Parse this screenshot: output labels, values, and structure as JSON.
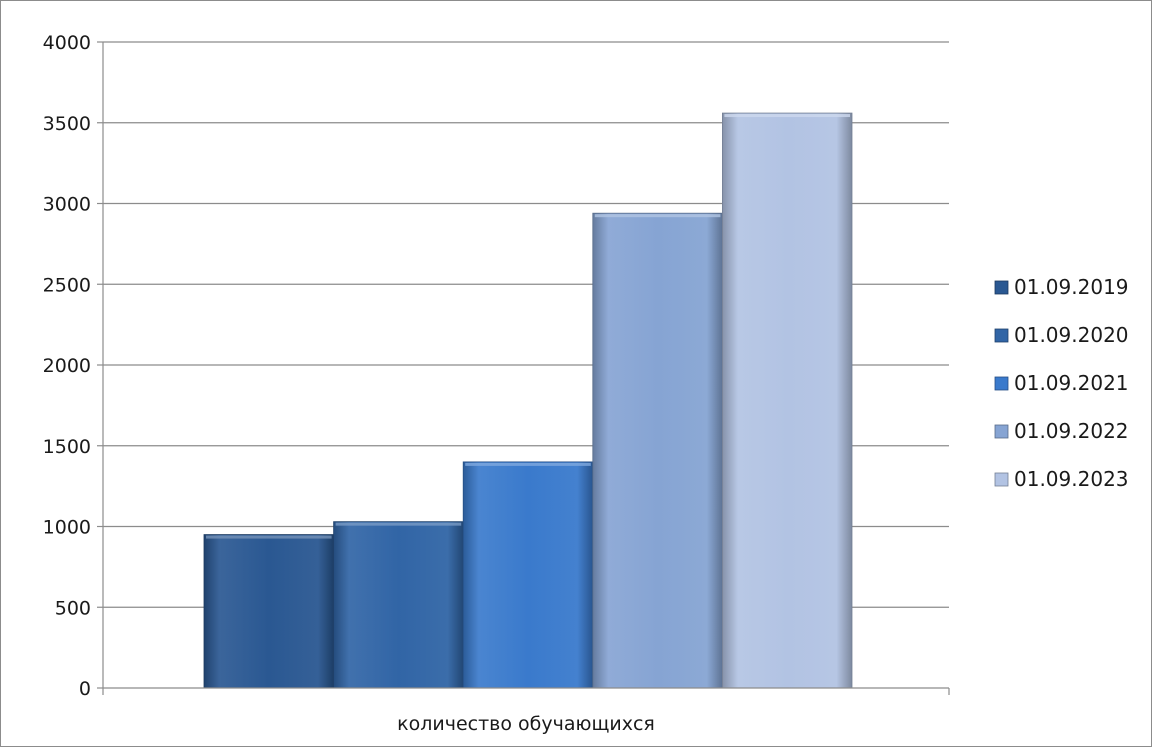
{
  "chart_data": {
    "type": "bar",
    "categories": [
      "количество обучающихся"
    ],
    "series": [
      {
        "name": "01.09.2019",
        "values": [
          950
        ],
        "color": "#2a5892"
      },
      {
        "name": "01.09.2020",
        "values": [
          1030
        ],
        "color": "#3165a6"
      },
      {
        "name": "01.09.2021",
        "values": [
          1400
        ],
        "color": "#3a7acc"
      },
      {
        "name": "01.09.2022",
        "values": [
          2940
        ],
        "color": "#86a4d3"
      },
      {
        "name": "01.09.2023",
        "values": [
          3560
        ],
        "color": "#b2c3e3"
      }
    ],
    "yticks": [
      "0",
      "500",
      "1000",
      "1500",
      "2000",
      "2500",
      "3000",
      "3500",
      "4000"
    ],
    "ylim": [
      0,
      4000
    ],
    "grid": true,
    "legend_position": "right"
  }
}
